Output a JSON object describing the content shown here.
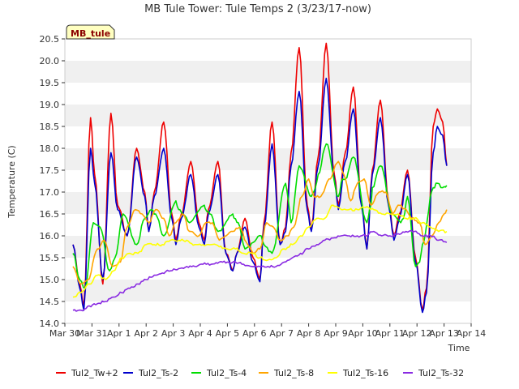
{
  "chart_data": {
    "type": "line",
    "title": "MB Tule Tower: Tule Temps 2 (3/23/17-now)",
    "badge": "MB_tule",
    "xlabel": "Time",
    "ylabel": "Temperature (C)",
    "ylim": [
      14.0,
      20.5
    ],
    "yticks": [
      "14.0",
      "14.5",
      "15.0",
      "15.5",
      "16.0",
      "16.5",
      "17.0",
      "17.5",
      "18.0",
      "18.5",
      "19.0",
      "19.5",
      "20.0",
      "20.5"
    ],
    "xlim": [
      0,
      15
    ],
    "xticks": [
      "Mar 30",
      "Mar 31",
      "Apr 1",
      "Apr 2",
      "Apr 3",
      "Apr 4",
      "Apr 5",
      "Apr 6",
      "Apr 7",
      "Apr 8",
      "Apr 9",
      "Apr 10",
      "Apr 11",
      "Apr 12",
      "Apr 13",
      "Apr 14"
    ],
    "grid": "horizontal bands",
    "legend_position": "bottom",
    "series": [
      {
        "name": "Tul2_Tw+2",
        "color": "#ee0000",
        "x": [
          0.3,
          0.55,
          0.7,
          0.95,
          1.1,
          1.4,
          1.7,
          1.95,
          2.3,
          2.65,
          2.95,
          3.1,
          3.3,
          3.65,
          3.95,
          4.1,
          4.3,
          4.65,
          4.95,
          5.15,
          5.3,
          5.65,
          5.95,
          6.2,
          6.35,
          6.65,
          6.95,
          7.2,
          7.35,
          7.65,
          7.95,
          8.15,
          8.35,
          8.65,
          8.95,
          9.1,
          9.35,
          9.65,
          9.95,
          10.1,
          10.35,
          10.65,
          10.95,
          11.15,
          11.35,
          11.65,
          11.95,
          12.15,
          12.35,
          12.65,
          12.95,
          13.2,
          13.35,
          13.6,
          13.75,
          13.95,
          14.1
        ],
        "y": [
          15.8,
          14.9,
          14.4,
          18.7,
          17.4,
          14.9,
          18.8,
          16.7,
          16.0,
          18.0,
          17.0,
          16.1,
          17.0,
          18.6,
          16.5,
          15.9,
          16.5,
          17.7,
          16.3,
          15.9,
          16.6,
          17.7,
          15.6,
          15.2,
          15.6,
          16.4,
          15.5,
          15.0,
          16.3,
          18.6,
          15.8,
          16.2,
          17.9,
          20.3,
          16.7,
          16.2,
          17.8,
          20.4,
          17.4,
          16.7,
          17.9,
          19.4,
          16.8,
          15.7,
          17.5,
          19.1,
          16.8,
          16.0,
          16.5,
          17.5,
          15.5,
          14.3,
          14.8,
          18.5,
          18.9,
          18.6,
          17.6
        ]
      },
      {
        "name": "Tul2_Ts-2",
        "color": "#0000cc",
        "x": [
          0.3,
          0.55,
          0.7,
          0.95,
          1.1,
          1.4,
          1.7,
          1.95,
          2.3,
          2.65,
          2.95,
          3.1,
          3.3,
          3.65,
          3.95,
          4.1,
          4.3,
          4.65,
          4.95,
          5.15,
          5.3,
          5.65,
          5.95,
          6.2,
          6.35,
          6.65,
          6.95,
          7.2,
          7.35,
          7.65,
          7.95,
          8.15,
          8.35,
          8.65,
          8.95,
          9.1,
          9.35,
          9.65,
          9.95,
          10.1,
          10.35,
          10.65,
          10.95,
          11.15,
          11.35,
          11.65,
          11.95,
          12.15,
          12.35,
          12.65,
          12.95,
          13.2,
          13.35,
          13.6,
          13.75,
          13.95,
          14.1
        ],
        "y": [
          15.8,
          14.8,
          14.3,
          18.0,
          17.2,
          15.0,
          17.9,
          16.6,
          16.0,
          17.8,
          16.9,
          16.1,
          16.9,
          18.0,
          16.4,
          15.8,
          16.4,
          17.4,
          16.2,
          15.8,
          16.5,
          17.4,
          15.6,
          15.2,
          15.6,
          16.2,
          15.4,
          14.95,
          16.2,
          18.1,
          15.8,
          16.1,
          17.6,
          19.3,
          16.6,
          16.1,
          17.6,
          19.6,
          17.3,
          16.6,
          17.7,
          18.9,
          16.7,
          15.7,
          17.4,
          18.7,
          16.7,
          15.9,
          16.4,
          17.4,
          15.4,
          14.25,
          14.7,
          17.9,
          18.5,
          18.3,
          17.6
        ]
      },
      {
        "name": "Tul2_Ts-4",
        "color": "#00dd00",
        "x": [
          0.3,
          0.55,
          0.75,
          1.05,
          1.3,
          1.65,
          1.85,
          2.15,
          2.65,
          2.95,
          3.2,
          3.35,
          3.65,
          4.1,
          4.2,
          4.35,
          4.6,
          5.15,
          5.2,
          5.35,
          5.65,
          6.2,
          6.25,
          6.4,
          6.65,
          7.25,
          7.35,
          7.65,
          8.15,
          8.25,
          8.35,
          8.65,
          9.1,
          9.25,
          9.35,
          9.65,
          10.1,
          10.25,
          10.35,
          10.65,
          11.15,
          11.3,
          11.35,
          11.65,
          12.1,
          12.4,
          12.5,
          12.65,
          12.95,
          13.1,
          13.2,
          13.6,
          13.75,
          13.95,
          14.1
        ],
        "y": [
          15.6,
          15.0,
          14.8,
          16.3,
          16.2,
          15.2,
          15.5,
          16.5,
          15.8,
          16.4,
          16.6,
          16.5,
          16.0,
          16.8,
          16.6,
          16.5,
          16.3,
          16.7,
          16.6,
          16.5,
          16.1,
          16.5,
          16.4,
          16.3,
          15.7,
          16.0,
          15.8,
          15.6,
          17.2,
          16.8,
          16.3,
          17.6,
          16.9,
          17.1,
          17.4,
          18.1,
          16.9,
          17.3,
          17.3,
          17.8,
          16.3,
          16.7,
          17.1,
          17.6,
          16.5,
          16.3,
          16.4,
          16.9,
          15.3,
          15.4,
          15.8,
          17.1,
          17.2,
          17.1,
          17.15
        ]
      },
      {
        "name": "Tul2_Ts-8",
        "color": "#ffa500",
        "x": [
          0.3,
          0.6,
          0.85,
          1.2,
          1.45,
          1.75,
          2.05,
          2.3,
          2.6,
          2.85,
          3.1,
          3.35,
          3.65,
          3.85,
          4.1,
          4.35,
          4.6,
          4.95,
          5.2,
          5.45,
          5.7,
          5.95,
          6.2,
          6.45,
          6.75,
          6.95,
          7.2,
          7.45,
          7.7,
          7.95,
          8.2,
          8.45,
          8.75,
          9.0,
          9.2,
          9.45,
          9.75,
          10.1,
          10.3,
          10.55,
          10.8,
          11.05,
          11.3,
          11.6,
          11.85,
          12.1,
          12.3,
          12.6,
          12.8,
          13.1,
          13.3,
          13.55,
          13.8,
          14.0,
          14.1
        ],
        "y": [
          15.3,
          14.9,
          15.0,
          15.7,
          15.9,
          15.3,
          15.4,
          16.2,
          16.6,
          16.5,
          16.3,
          16.6,
          16.4,
          16.0,
          16.3,
          16.5,
          16.1,
          16.0,
          16.3,
          16.3,
          15.9,
          16.0,
          16.1,
          16.2,
          15.8,
          15.6,
          15.7,
          16.3,
          16.2,
          15.9,
          16.0,
          16.2,
          16.9,
          17.3,
          16.9,
          16.9,
          17.3,
          17.7,
          17.4,
          16.8,
          17.2,
          17.3,
          16.7,
          17.0,
          17.0,
          16.5,
          16.7,
          16.6,
          16.4,
          16.3,
          15.8,
          16.0,
          16.3,
          16.5,
          16.6
        ]
      },
      {
        "name": "Tul2_Ts-16",
        "color": "#ffff00",
        "x": [
          0.3,
          0.6,
          0.9,
          1.2,
          1.5,
          1.8,
          2.1,
          2.4,
          2.7,
          3.0,
          3.3,
          3.6,
          3.9,
          4.2,
          4.5,
          4.8,
          5.1,
          5.4,
          5.7,
          6.0,
          6.3,
          6.6,
          6.9,
          7.2,
          7.5,
          7.8,
          8.1,
          8.4,
          8.7,
          9.0,
          9.3,
          9.6,
          9.9,
          10.2,
          10.5,
          10.8,
          11.1,
          11.4,
          11.7,
          12.0,
          12.3,
          12.6,
          12.9,
          13.2,
          13.5,
          13.8,
          14.1
        ],
        "y": [
          14.6,
          14.7,
          14.9,
          15.1,
          15.0,
          15.2,
          15.5,
          15.6,
          15.6,
          15.8,
          15.8,
          15.8,
          15.9,
          15.9,
          15.9,
          15.8,
          15.8,
          15.8,
          15.75,
          15.7,
          15.7,
          15.6,
          15.6,
          15.5,
          15.45,
          15.5,
          15.7,
          15.8,
          16.0,
          16.2,
          16.4,
          16.4,
          16.7,
          16.6,
          16.6,
          16.6,
          16.65,
          16.6,
          16.5,
          16.5,
          16.5,
          16.4,
          16.4,
          16.3,
          16.2,
          16.1,
          16.1
        ]
      },
      {
        "name": "Tul2_Ts-32",
        "color": "#8a2be2",
        "x": [
          0.3,
          0.6,
          0.9,
          1.2,
          1.5,
          1.8,
          2.1,
          2.4,
          2.7,
          3.0,
          3.3,
          3.6,
          3.9,
          4.2,
          4.5,
          4.8,
          5.1,
          5.4,
          5.7,
          6.0,
          6.3,
          6.6,
          6.9,
          7.2,
          7.5,
          7.8,
          8.1,
          8.4,
          8.7,
          9.0,
          9.3,
          9.6,
          9.9,
          10.2,
          10.5,
          10.8,
          11.1,
          11.4,
          11.7,
          12.0,
          12.3,
          12.6,
          12.9,
          13.2,
          13.5,
          13.8,
          14.1
        ],
        "y": [
          14.3,
          14.3,
          14.4,
          14.45,
          14.5,
          14.6,
          14.7,
          14.8,
          14.9,
          15.0,
          15.1,
          15.15,
          15.2,
          15.25,
          15.3,
          15.3,
          15.35,
          15.35,
          15.4,
          15.4,
          15.4,
          15.35,
          15.3,
          15.3,
          15.3,
          15.3,
          15.4,
          15.5,
          15.6,
          15.7,
          15.8,
          15.9,
          15.95,
          16.0,
          16.0,
          16.0,
          16.0,
          16.1,
          16.0,
          16.0,
          16.05,
          16.1,
          16.1,
          16.0,
          16.0,
          15.9,
          15.85
        ]
      }
    ]
  }
}
